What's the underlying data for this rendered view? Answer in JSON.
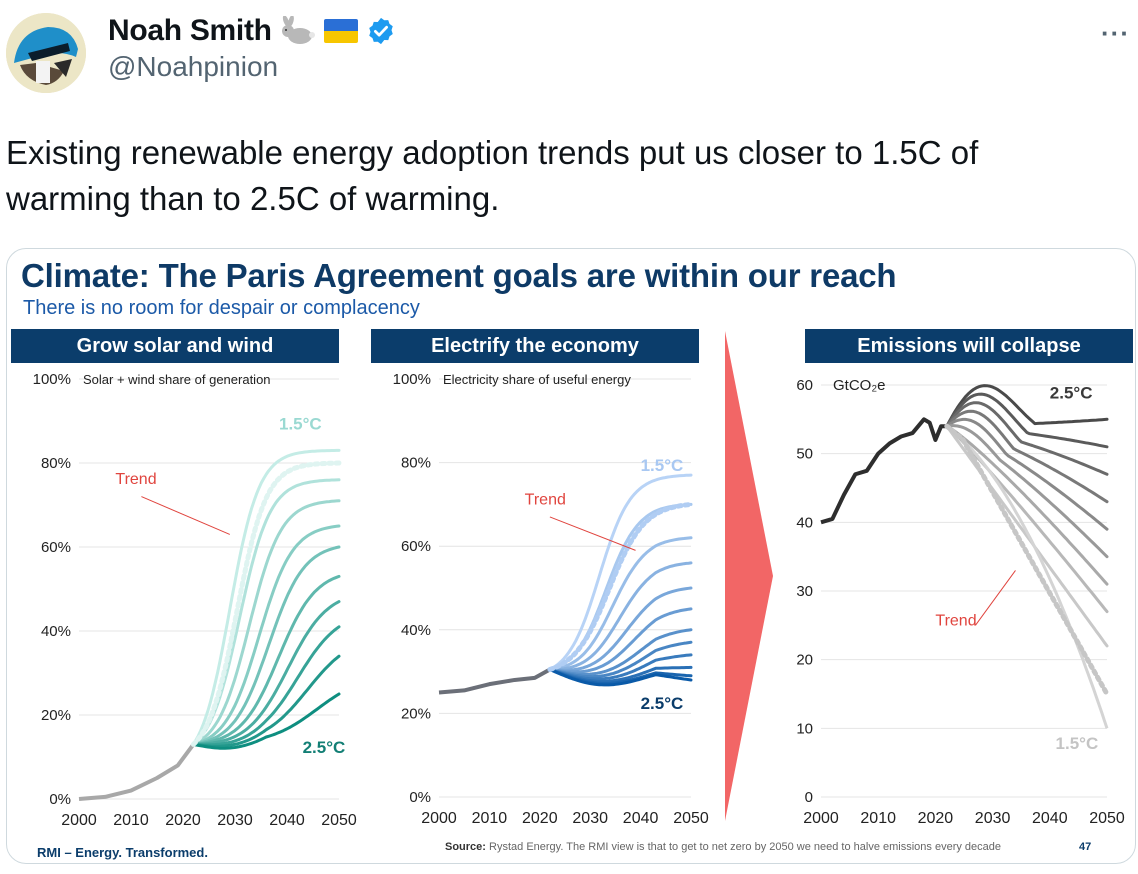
{
  "author": {
    "name": "Noah Smith",
    "handle": "@Noahpinion",
    "emoji_rabbit": "🐇",
    "emoji_flag": "🇺🇦",
    "verified": true
  },
  "tweet": {
    "text": "Existing renewable energy adoption trends put us closer to 1.5C of warming than to 2.5C of warming."
  },
  "slide": {
    "title": "Climate: The Paris Agreement goals are within our reach",
    "subtitle": "There is no room for despair or complacency",
    "footer_left": "RMI – Energy. Transformed.",
    "source_label": "Source:",
    "source_text": "Rystad Energy. The RMI view is that to get to net zero by 2050 we need to halve emissions every decade",
    "page_number": "47",
    "colors": {
      "navy": "#0b3d6b",
      "title": "#0e3a66",
      "trend": "#e0443e",
      "arrow": "#f26666"
    }
  },
  "chart_data": [
    {
      "type": "line",
      "header": "Grow solar and wind",
      "ylabel": "Solar + wind share of generation",
      "x_ticks": [
        "2000",
        "2010",
        "2020",
        "2030",
        "2040",
        "2050"
      ],
      "y_ticks": [
        "0%",
        "20%",
        "40%",
        "60%",
        "80%",
        "100%"
      ],
      "xlim": [
        2000,
        2050
      ],
      "ylim": [
        0,
        100
      ],
      "history": {
        "x": [
          2000,
          2005,
          2010,
          2015,
          2019,
          2022
        ],
        "y": [
          0,
          0.5,
          2,
          5,
          8,
          13
        ]
      },
      "scenario_end_values": [
        83,
        76,
        71,
        65,
        60,
        53,
        47,
        41,
        34,
        25
      ],
      "trend_end_value": 80,
      "labels": {
        "top": "1.5°C",
        "bottom": "2.5°C",
        "trend": "Trend"
      }
    },
    {
      "type": "line",
      "header": "Electrify the economy",
      "ylabel": "Electricity share of useful energy",
      "x_ticks": [
        "2000",
        "2010",
        "2020",
        "2030",
        "2040",
        "2050"
      ],
      "y_ticks": [
        "0%",
        "20%",
        "40%",
        "60%",
        "80%",
        "100%"
      ],
      "xlim": [
        2000,
        2050
      ],
      "ylim": [
        0,
        100
      ],
      "history": {
        "x": [
          2000,
          2005,
          2010,
          2015,
          2019,
          2022
        ],
        "y": [
          25,
          25.5,
          27,
          28,
          28.5,
          30.5
        ]
      },
      "scenario_end_values": [
        77,
        70,
        62,
        56,
        50,
        45,
        40,
        37,
        34,
        31,
        29,
        28
      ],
      "trend_end_value": 70,
      "labels": {
        "top": "1.5°C",
        "bottom": "2.5°C",
        "trend": "Trend"
      }
    },
    {
      "type": "line",
      "header": "Emissions will collapse",
      "ylabel": "GtCO₂e",
      "x_ticks": [
        "2000",
        "2010",
        "2020",
        "2030",
        "2040",
        "2050"
      ],
      "y_ticks": [
        "0",
        "10",
        "20",
        "30",
        "40",
        "50",
        "60"
      ],
      "xlim": [
        2000,
        2050
      ],
      "ylim": [
        0,
        60
      ],
      "history": {
        "x": [
          2000,
          2002,
          2004,
          2006,
          2008,
          2010,
          2012,
          2014,
          2016,
          2018,
          2019,
          2020,
          2021,
          2022
        ],
        "y": [
          40,
          40.5,
          44,
          47,
          47.5,
          50,
          51.5,
          52.5,
          53,
          55,
          54.5,
          52,
          54,
          54
        ]
      },
      "scenario_end_values": [
        55,
        51,
        47,
        43,
        39,
        35,
        31,
        27,
        22
      ],
      "trend_end_value": 15,
      "floor_end_value": 10,
      "labels": {
        "top": "2.5°C",
        "bottom": "1.5°C",
        "trend": "Trend"
      }
    }
  ]
}
